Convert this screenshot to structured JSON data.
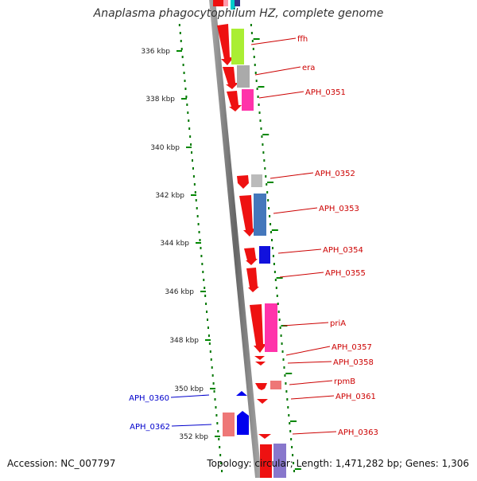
{
  "title": "Anaplasma phagocytophilum HZ, complete genome",
  "footer": {
    "accession": "Accession: NC_007797",
    "topology": "Topology: circular; Length: 1,471,282 bp; Genes: 1,306"
  },
  "tick_labels": [
    "336 kbp",
    "338 kbp",
    "340 kbp",
    "342 kbp",
    "344 kbp",
    "346 kbp",
    "348 kbp",
    "350 kbp",
    "352 kbp"
  ],
  "gene_labels": [
    "ffh",
    "era",
    "APH_0351",
    "APH_0352",
    "APH_0353",
    "APH_0354",
    "APH_0355",
    "priA",
    "APH_0357",
    "APH_0358",
    "rpmB",
    "APH_0361",
    "APH_0363",
    "APH_0360",
    "APH_0362"
  ],
  "colors": {
    "forward_gene": "#ee1111",
    "forward_label": "#cc0000",
    "reverse_gene": "#0000ee",
    "reverse_label": "#0000cc",
    "backbone": "#888888",
    "dotted_ring": "#007700",
    "tick": "#008800"
  }
}
